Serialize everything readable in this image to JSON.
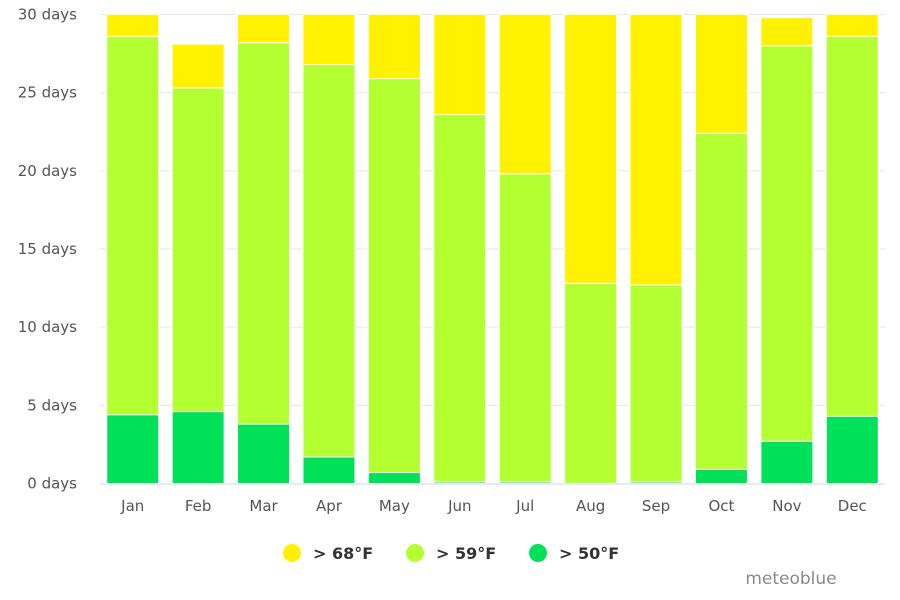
{
  "chart_data": {
    "type": "bar",
    "stacked": true,
    "categories": [
      "Jan",
      "Feb",
      "Mar",
      "Apr",
      "May",
      "Jun",
      "Jul",
      "Aug",
      "Sep",
      "Oct",
      "Nov",
      "Dec"
    ],
    "y_ticks": [
      "0 days",
      "5 days",
      "10 days",
      "15 days",
      "20 days",
      "25 days",
      "30 days"
    ],
    "ylim": [
      0,
      30
    ],
    "grid": true,
    "legend_position": "bottom-center",
    "series": [
      {
        "name": "> 50°F",
        "color": "#00e15a",
        "values": [
          4.4,
          4.6,
          3.8,
          1.7,
          0.7,
          0.1,
          0.1,
          0.0,
          0.1,
          0.9,
          2.7,
          4.3
        ]
      },
      {
        "name": "> 59°F",
        "color": "#b4ff32",
        "values": [
          24.2,
          20.7,
          24.4,
          25.1,
          25.2,
          23.5,
          19.7,
          12.8,
          12.6,
          21.5,
          25.3,
          24.3
        ]
      },
      {
        "name": "> 68°F",
        "color": "#fff100",
        "values": [
          1.4,
          2.8,
          1.8,
          3.2,
          4.1,
          6.4,
          10.2,
          17.2,
          17.3,
          7.6,
          1.8,
          1.4
        ]
      }
    ],
    "legend_order": [
      2,
      1,
      0
    ]
  },
  "branding": {
    "watermark": "meteoblue"
  }
}
